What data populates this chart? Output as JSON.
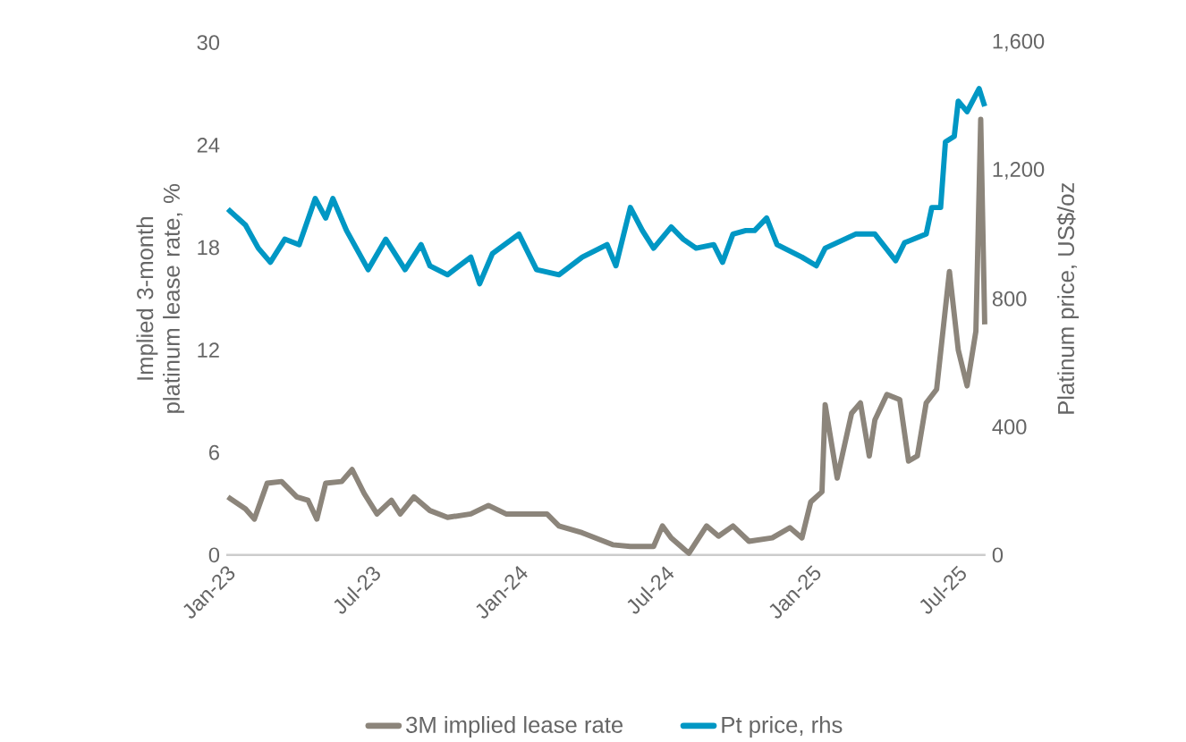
{
  "chart_data": {
    "type": "line",
    "ylabel": "Implied 3-month platinum lease rate, %",
    "y2label": "Platinum price, US$/oz",
    "xlim": [
      "2023-01-01",
      "2025-08-05"
    ],
    "xticks": [
      {
        "value": "2023-01-01",
        "label": "Jan-23"
      },
      {
        "value": "2023-07-01",
        "label": "Jul-23"
      },
      {
        "value": "2024-01-01",
        "label": "Jan-24"
      },
      {
        "value": "2024-07-01",
        "label": "Jul-24"
      },
      {
        "value": "2025-01-01",
        "label": "Jan-25"
      },
      {
        "value": "2025-07-01",
        "label": "Jul-25"
      }
    ],
    "ylim": [
      0,
      30
    ],
    "yticks": [
      0,
      6,
      12,
      18,
      24,
      30
    ],
    "y2lim": [
      0,
      1600
    ],
    "y2ticks": [
      0,
      {
        "value": 400,
        "label": "400"
      },
      {
        "value": 800,
        "label": "800"
      },
      {
        "value": 1200,
        "label": "1,200"
      },
      {
        "value": 1600,
        "label": "1,600"
      }
    ],
    "legend": "bottom",
    "series": [
      {
        "name": "3M implied lease rate",
        "color": "#8c857b",
        "x": [
          "2023-01-03",
          "2023-01-25",
          "2023-02-05",
          "2023-02-21",
          "2023-03-11",
          "2023-03-30",
          "2023-04-13",
          "2023-04-24",
          "2023-05-05",
          "2023-05-25",
          "2023-06-07",
          "2023-06-22",
          "2023-07-08",
          "2023-07-26",
          "2023-08-06",
          "2023-08-23",
          "2023-09-12",
          "2023-10-04",
          "2023-11-02",
          "2023-11-24",
          "2023-12-16",
          "2024-02-05",
          "2024-02-20",
          "2024-03-20",
          "2024-04-27",
          "2024-05-19",
          "2024-06-17",
          "2024-06-28",
          "2024-07-09",
          "2024-07-31",
          "2024-08-22",
          "2024-09-06",
          "2024-09-24",
          "2024-10-14",
          "2024-11-12",
          "2024-12-04",
          "2024-12-19",
          "2024-12-30",
          "2025-01-13",
          "2025-01-17",
          "2025-02-01",
          "2025-02-19",
          "2025-03-02",
          "2025-03-13",
          "2025-03-20",
          "2025-04-04",
          "2025-04-20",
          "2025-05-01",
          "2025-05-12",
          "2025-05-23",
          "2025-06-05",
          "2025-06-21",
          "2025-07-02",
          "2025-07-13",
          "2025-07-24",
          "2025-07-30",
          "2025-08-04"
        ],
        "values": [
          3.4,
          2.7,
          2.1,
          4.2,
          4.3,
          3.4,
          3.2,
          2.1,
          4.2,
          4.3,
          5.0,
          3.6,
          2.4,
          3.2,
          2.4,
          3.4,
          2.6,
          2.2,
          2.4,
          2.9,
          2.4,
          2.4,
          1.7,
          1.3,
          0.6,
          0.5,
          0.5,
          1.7,
          1.0,
          0.1,
          1.7,
          1.1,
          1.7,
          0.8,
          1.0,
          1.6,
          1.0,
          3.1,
          3.7,
          8.8,
          4.5,
          8.3,
          8.9,
          5.8,
          7.9,
          9.4,
          9.1,
          5.5,
          5.8,
          8.9,
          9.7,
          16.6,
          12.0,
          9.9,
          13.1,
          25.5,
          13.5
        ]
      },
      {
        "name": "Pt price, rhs",
        "color": "#0097c4",
        "axis": "y2",
        "x": [
          "2023-01-03",
          "2023-01-25",
          "2023-02-10",
          "2023-02-25",
          "2023-03-15",
          "2023-04-02",
          "2023-04-22",
          "2023-05-05",
          "2023-05-14",
          "2023-05-31",
          "2023-06-27",
          "2023-07-19",
          "2023-08-12",
          "2023-09-01",
          "2023-09-12",
          "2023-10-04",
          "2023-11-02",
          "2023-11-13",
          "2023-11-29",
          "2024-01-01",
          "2024-01-23",
          "2024-02-20",
          "2024-03-20",
          "2024-04-20",
          "2024-05-01",
          "2024-05-19",
          "2024-06-03",
          "2024-06-17",
          "2024-07-09",
          "2024-07-24",
          "2024-08-09",
          "2024-08-31",
          "2024-09-11",
          "2024-09-24",
          "2024-10-10",
          "2024-10-21",
          "2024-11-05",
          "2024-11-18",
          "2024-12-19",
          "2025-01-06",
          "2025-01-17",
          "2025-02-24",
          "2025-03-20",
          "2025-04-15",
          "2025-04-26",
          "2025-05-23",
          "2025-05-30",
          "2025-06-10",
          "2025-06-16",
          "2025-06-27",
          "2025-07-02",
          "2025-07-13",
          "2025-07-28",
          "2025-08-04"
        ],
        "values": [
          1080,
          1030,
          958,
          914,
          986,
          969,
          1113,
          1052,
          1113,
          1013,
          891,
          986,
          891,
          969,
          903,
          875,
          930,
          847,
          941,
          1002,
          891,
          875,
          930,
          969,
          903,
          1085,
          1013,
          958,
          1024,
          986,
          958,
          969,
          914,
          1002,
          1013,
          1013,
          1052,
          969,
          930,
          903,
          958,
          1002,
          1002,
          919,
          975,
          1002,
          1085,
          1085,
          1290,
          1307,
          1417,
          1384,
          1456,
          1401
        ]
      }
    ]
  }
}
